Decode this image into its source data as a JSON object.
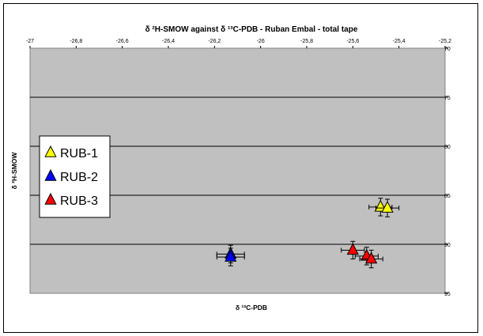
{
  "chart_data": {
    "type": "scatter",
    "title": "δ ²H-SMOW against δ ¹³C-PDB - Ruban Embal - total tape",
    "xlabel": "δ ¹³C-PDB",
    "ylabel": "δ ²H-SMOW",
    "xlim": [
      -27,
      -25.2
    ],
    "ylim": [
      95,
      70
    ],
    "y_axis_reversed": true,
    "x_axis_position": "top",
    "y_axis_position": "right",
    "x_ticks": [
      -27,
      -26.8,
      -26.6,
      -26.4,
      -26.2,
      -26,
      -25.8,
      -25.6,
      -25.4,
      -25.2
    ],
    "x_tick_labels": [
      "-27",
      "-26,8",
      "-26,6",
      "-26,4",
      "-26,2",
      "-26",
      "-25,8",
      "-25,6",
      "-25,4",
      "-25,2"
    ],
    "y_ticks": [
      70,
      75,
      80,
      85,
      90,
      95
    ],
    "y_tick_labels": [
      "70",
      "75",
      "80",
      "85",
      "90",
      "95"
    ],
    "grid": "horizontal",
    "plot_background": "#c0c0c0",
    "legend_position": "left",
    "series": [
      {
        "name": "RUB-1",
        "color": "#ffff00",
        "marker": "triangle",
        "points": [
          {
            "x": -25.48,
            "y": 86.2,
            "xerr": 0.05,
            "yerr": 0.9
          },
          {
            "x": -25.45,
            "y": 86.3,
            "xerr": 0.05,
            "yerr": 0.9
          }
        ]
      },
      {
        "name": "RUB-2",
        "color": "#0000ff",
        "marker": "triangle",
        "points": [
          {
            "x": -26.13,
            "y": 91.0,
            "xerr": 0.06,
            "yerr": 0.9
          },
          {
            "x": -26.13,
            "y": 91.3,
            "xerr": 0.06,
            "yerr": 0.9
          }
        ]
      },
      {
        "name": "RUB-3",
        "color": "#ff0000",
        "marker": "triangle",
        "points": [
          {
            "x": -25.6,
            "y": 90.6,
            "xerr": 0.05,
            "yerr": 0.9
          },
          {
            "x": -25.54,
            "y": 91.2,
            "xerr": 0.05,
            "yerr": 0.9
          },
          {
            "x": -25.52,
            "y": 91.5,
            "xerr": 0.05,
            "yerr": 0.9
          }
        ]
      }
    ]
  }
}
